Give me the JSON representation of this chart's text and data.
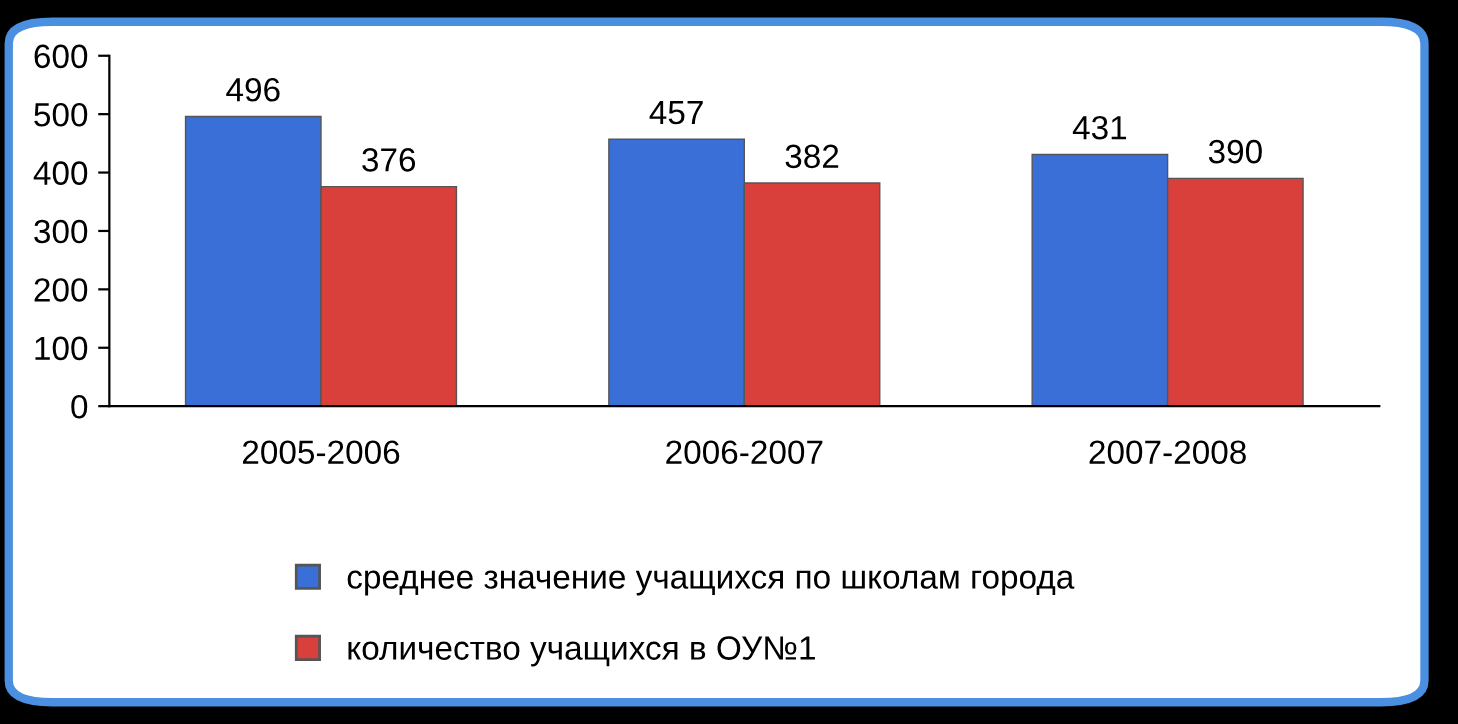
{
  "chart_data": {
    "type": "bar",
    "categories": [
      "2005-2006",
      "2006-2007",
      "2007-2008"
    ],
    "series": [
      {
        "name": "среднее значение учащихся по школам города",
        "color": "#3a6fd8",
        "values": [
          496,
          457,
          431
        ]
      },
      {
        "name": "количество учащихся в ОУ№1",
        "color": "#d9403c",
        "values": [
          376,
          382,
          390
        ]
      }
    ],
    "ylim": [
      0,
      600
    ],
    "yticks": [
      0,
      100,
      200,
      300,
      400,
      500,
      600
    ],
    "data_labels": true,
    "legend": "bottom",
    "grid": false
  }
}
